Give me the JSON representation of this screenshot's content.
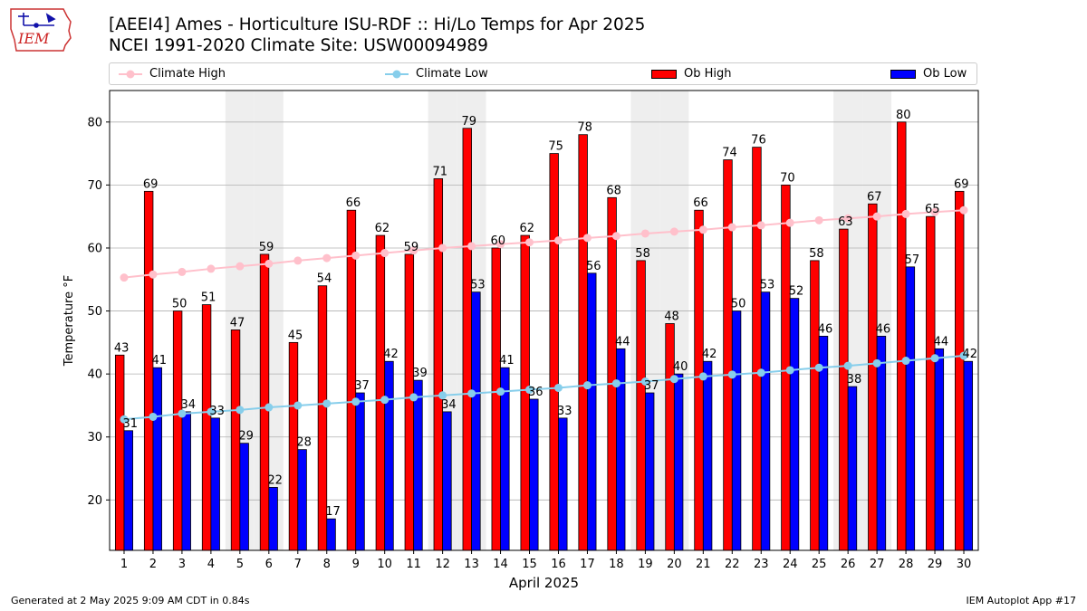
{
  "logo": {
    "text": "IEM",
    "icon": "iowa-state-outline-icon"
  },
  "title": {
    "line1": "[AEEI4] Ames - Horticulture ISU-RDF :: Hi/Lo Temps for Apr 2025",
    "line2": "NCEI 1991-2020 Climate Site: USW00094989"
  },
  "footer": {
    "left": "Generated at 2 May 2025 9:09 AM CDT in 0.84s",
    "right": "IEM Autoplot App #17"
  },
  "colors": {
    "ob_high": "#ff0000",
    "ob_low": "#0000ff",
    "climate_high": "#ffc0cb",
    "climate_low": "#87ceeb",
    "weekend_shade": "#eeeeee",
    "grid": "#b0b0b0"
  },
  "chart_data": {
    "type": "bar",
    "xlabel": "April 2025",
    "ylabel": "Temperature °F",
    "ylim": [
      12,
      85
    ],
    "yticks": [
      20,
      30,
      40,
      50,
      60,
      70,
      80
    ],
    "grid": "horizontal",
    "legend_position": "top",
    "categories": [
      1,
      2,
      3,
      4,
      5,
      6,
      7,
      8,
      9,
      10,
      11,
      12,
      13,
      14,
      15,
      16,
      17,
      18,
      19,
      20,
      21,
      22,
      23,
      24,
      25,
      26,
      27,
      28,
      29,
      30
    ],
    "shaded_weekend_days": [
      5,
      6,
      12,
      13,
      19,
      20,
      26,
      27
    ],
    "series": [
      {
        "name": "Ob High",
        "kind": "bar",
        "values": [
          43,
          69,
          50,
          51,
          47,
          59,
          45,
          54,
          66,
          62,
          59,
          71,
          79,
          60,
          62,
          75,
          78,
          68,
          58,
          48,
          66,
          74,
          76,
          70,
          58,
          63,
          67,
          80,
          65,
          69
        ],
        "labels": [
          "43",
          "69",
          "50",
          "51",
          "47",
          "59",
          "45",
          "54",
          "66",
          "62",
          "59",
          "71",
          "79",
          "60",
          "62",
          "75",
          "78",
          "68",
          "58",
          "48",
          "66",
          "74",
          "76",
          "70",
          "58",
          "63",
          "67",
          "80",
          "65",
          "69"
        ]
      },
      {
        "name": "Ob Low",
        "kind": "bar",
        "values": [
          31,
          41,
          34,
          33,
          29,
          22,
          28,
          17,
          37,
          42,
          39,
          34,
          53,
          41,
          36,
          33,
          56,
          44,
          37,
          40,
          42,
          50,
          53,
          52,
          46,
          38,
          46,
          57,
          44,
          42
        ],
        "labels": [
          "31",
          "41",
          "34",
          "33",
          "29",
          "22",
          "28",
          "17",
          "37",
          "42",
          "39",
          "34",
          "53",
          "41",
          "36",
          "33",
          "56",
          "44",
          "37",
          "40",
          "42",
          "50",
          "53",
          "52",
          "46",
          "38",
          "46",
          "57",
          "44",
          "42"
        ]
      },
      {
        "name": "Climate High",
        "kind": "line",
        "values": [
          55.3,
          55.8,
          56.2,
          56.7,
          57.1,
          57.5,
          58.0,
          58.4,
          58.8,
          59.2,
          59.6,
          60.0,
          60.3,
          60.6,
          60.9,
          61.2,
          61.6,
          61.9,
          62.3,
          62.6,
          62.9,
          63.3,
          63.6,
          64.0,
          64.4,
          64.7,
          65.0,
          65.4,
          65.7,
          66.0
        ]
      },
      {
        "name": "Climate Low",
        "kind": "line",
        "values": [
          32.8,
          33.2,
          33.7,
          34.0,
          34.3,
          34.7,
          35.0,
          35.3,
          35.6,
          35.9,
          36.3,
          36.6,
          36.9,
          37.2,
          37.5,
          37.8,
          38.2,
          38.5,
          38.8,
          39.2,
          39.6,
          39.9,
          40.2,
          40.6,
          41.0,
          41.3,
          41.7,
          42.1,
          42.5,
          42.9
        ]
      }
    ]
  }
}
